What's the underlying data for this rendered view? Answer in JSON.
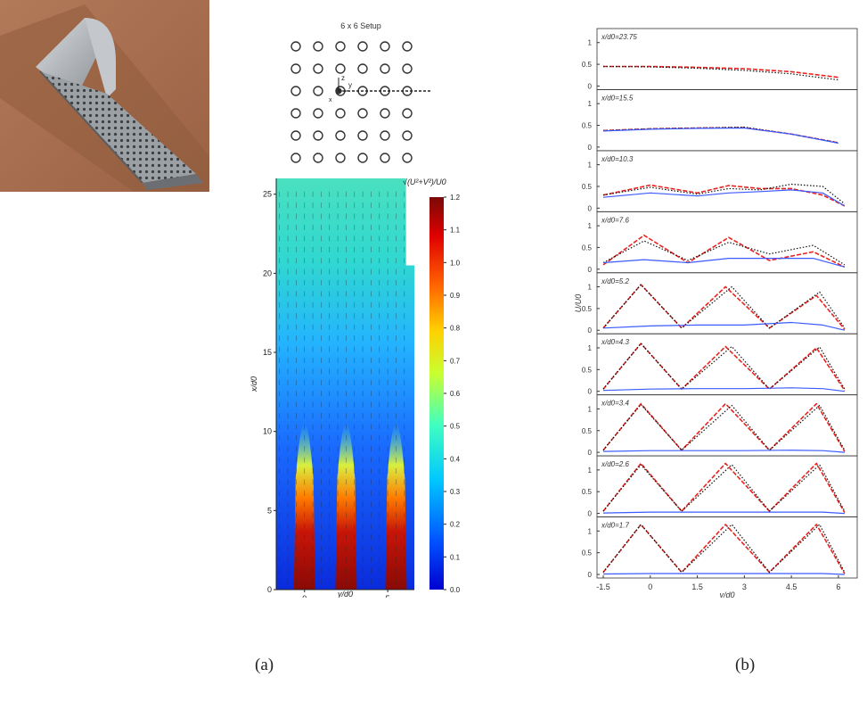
{
  "figure": {
    "caption_a": "(a)",
    "caption_b": "(b)"
  },
  "setup": {
    "title": "6 x 6 Setup",
    "axis_z": "z",
    "axis_y": "y",
    "axis_x": "x"
  },
  "colors": {
    "red_series": "#e8231f",
    "black_series": "#111111",
    "blue_series": "#3b5bff",
    "contour_low": "#0a2bdc",
    "contour_high": "#7a0a06"
  },
  "chart_data": [
    {
      "type": "heatmap",
      "title": "",
      "xlabel": "y/d0",
      "ylabel": "x/d0",
      "xticks": [
        "0",
        "5"
      ],
      "yticks": [
        "0",
        "5",
        "10",
        "15",
        "20",
        "25"
      ],
      "ylim": [
        0,
        26
      ],
      "xlim": [
        -1.7,
        6.6
      ],
      "jet_centers_y": [
        0,
        2.5,
        5.2
      ],
      "colorbar": {
        "label": "√(U²+V²)/U0",
        "min": 0.0,
        "max": 1.2,
        "ticks": [
          "0.0",
          "0.1",
          "0.2",
          "0.3",
          "0.4",
          "0.5",
          "0.6",
          "0.7",
          "0.8",
          "0.9",
          "1.0",
          "1.1",
          "1.2"
        ]
      }
    },
    {
      "type": "line",
      "xlabel": "y/d0",
      "ylabel": "U/U0",
      "xticks": [
        "-1.5",
        "0",
        "1.5",
        "3",
        "4.5",
        "6"
      ],
      "xlim": [
        -1.7,
        6.6
      ],
      "ylim": [
        0,
        1.2
      ],
      "yticks": [
        "0",
        "0.5",
        "1"
      ],
      "panels": [
        {
          "label": "x/d0=23.75",
          "series": [
            {
              "color": "red",
              "x": [
                -1.5,
                0,
                1.5,
                3,
                4.5,
                6
              ],
              "y": [
                0.45,
                0.45,
                0.43,
                0.4,
                0.33,
                0.2
              ]
            },
            {
              "color": "black",
              "x": [
                -1.5,
                0,
                1.5,
                3,
                4.5,
                6
              ],
              "y": [
                0.45,
                0.44,
                0.41,
                0.36,
                0.28,
                0.14
              ]
            }
          ]
        },
        {
          "label": "x/d0=15.5",
          "series": [
            {
              "color": "red",
              "x": [
                -1.5,
                0,
                1.5,
                3,
                4.5,
                6
              ],
              "y": [
                0.38,
                0.42,
                0.44,
                0.45,
                0.3,
                0.1
              ]
            },
            {
              "color": "black",
              "x": [
                -1.5,
                0,
                1.5,
                3,
                4.5,
                6
              ],
              "y": [
                0.38,
                0.42,
                0.44,
                0.46,
                0.3,
                0.1
              ]
            },
            {
              "color": "blue",
              "x": [
                -1.5,
                0,
                1.5,
                3,
                4.5,
                6
              ],
              "y": [
                0.37,
                0.41,
                0.43,
                0.44,
                0.3,
                0.09
              ]
            }
          ]
        },
        {
          "label": "x/d0=10.3",
          "series": [
            {
              "color": "red",
              "x": [
                -1.5,
                0,
                1.5,
                2.5,
                3.5,
                4.5,
                5.5,
                6.2
              ],
              "y": [
                0.3,
                0.53,
                0.35,
                0.52,
                0.45,
                0.45,
                0.3,
                0.05
              ]
            },
            {
              "color": "black",
              "x": [
                -1.5,
                0,
                1.5,
                2.5,
                3.5,
                4.5,
                5.5,
                6.2
              ],
              "y": [
                0.3,
                0.48,
                0.32,
                0.45,
                0.42,
                0.55,
                0.5,
                0.1
              ]
            },
            {
              "color": "blue",
              "x": [
                -1.5,
                0,
                1.5,
                2.5,
                3.5,
                4.5,
                5.5,
                6.2
              ],
              "y": [
                0.25,
                0.35,
                0.28,
                0.35,
                0.38,
                0.42,
                0.35,
                0.05
              ]
            }
          ]
        },
        {
          "label": "x/d0=7.6",
          "series": [
            {
              "color": "red",
              "x": [
                -1.5,
                -0.2,
                1.2,
                2.5,
                3.8,
                5.2,
                6.2
              ],
              "y": [
                0.1,
                0.78,
                0.15,
                0.73,
                0.2,
                0.4,
                0.05
              ]
            },
            {
              "color": "black",
              "x": [
                -1.5,
                -0.2,
                1.2,
                2.5,
                3.8,
                5.2,
                6.2
              ],
              "y": [
                0.15,
                0.65,
                0.2,
                0.62,
                0.35,
                0.55,
                0.1
              ]
            },
            {
              "color": "blue",
              "x": [
                -1.5,
                -0.2,
                1.2,
                2.5,
                3.8,
                5.2,
                6.2
              ],
              "y": [
                0.15,
                0.22,
                0.15,
                0.25,
                0.25,
                0.25,
                0.05
              ]
            }
          ]
        },
        {
          "label": "x/d0=5.2",
          "series": [
            {
              "color": "red",
              "x": [
                -1.5,
                -0.3,
                1.0,
                2.4,
                3.8,
                5.3,
                6.2
              ],
              "y": [
                0.05,
                1.05,
                0.05,
                1.0,
                0.05,
                0.8,
                0.02
              ]
            },
            {
              "color": "black",
              "x": [
                -1.5,
                -0.3,
                1.0,
                2.6,
                3.8,
                5.4,
                6.2
              ],
              "y": [
                0.05,
                1.05,
                0.05,
                1.0,
                0.05,
                0.88,
                0.05
              ]
            },
            {
              "color": "blue",
              "x": [
                -1.5,
                0,
                1.5,
                3,
                4.5,
                5.5,
                6.2
              ],
              "y": [
                0.05,
                0.1,
                0.12,
                0.12,
                0.18,
                0.12,
                0.0
              ]
            }
          ]
        },
        {
          "label": "x/d0=4.3",
          "series": [
            {
              "color": "red",
              "x": [
                -1.5,
                -0.3,
                1.0,
                2.4,
                3.8,
                5.3,
                6.2
              ],
              "y": [
                0.05,
                1.1,
                0.05,
                1.03,
                0.05,
                1.0,
                0.02
              ]
            },
            {
              "color": "black",
              "x": [
                -1.5,
                -0.3,
                1.0,
                2.6,
                3.8,
                5.4,
                6.2
              ],
              "y": [
                0.05,
                1.1,
                0.05,
                1.03,
                0.05,
                1.02,
                0.05
              ]
            },
            {
              "color": "blue",
              "x": [
                -1.5,
                0,
                1.5,
                3,
                4.5,
                5.5,
                6.2
              ],
              "y": [
                0.02,
                0.05,
                0.06,
                0.06,
                0.08,
                0.06,
                0.0
              ]
            }
          ]
        },
        {
          "label": "x/d0=3.4",
          "series": [
            {
              "color": "red",
              "x": [
                -1.5,
                -0.3,
                1.0,
                2.4,
                3.8,
                5.3,
                6.2
              ],
              "y": [
                0.05,
                1.12,
                0.05,
                1.12,
                0.05,
                1.12,
                0.02
              ]
            },
            {
              "color": "black",
              "x": [
                -1.5,
                -0.3,
                1.0,
                2.6,
                3.8,
                5.4,
                6.2
              ],
              "y": [
                0.05,
                1.1,
                0.05,
                1.08,
                0.05,
                1.08,
                0.05
              ]
            },
            {
              "color": "blue",
              "x": [
                -1.5,
                0,
                1.5,
                3,
                4.5,
                5.5,
                6.2
              ],
              "y": [
                0.02,
                0.04,
                0.04,
                0.04,
                0.05,
                0.04,
                0.0
              ]
            }
          ]
        },
        {
          "label": "x/d0=2.6",
          "series": [
            {
              "color": "red",
              "x": [
                -1.5,
                -0.3,
                1.0,
                2.4,
                3.8,
                5.3,
                6.2
              ],
              "y": [
                0.05,
                1.15,
                0.05,
                1.15,
                0.05,
                1.15,
                0.02
              ]
            },
            {
              "color": "black",
              "x": [
                -1.5,
                -0.3,
                1.0,
                2.6,
                3.8,
                5.4,
                6.2
              ],
              "y": [
                0.05,
                1.12,
                0.05,
                1.12,
                0.05,
                1.12,
                0.05
              ]
            },
            {
              "color": "blue",
              "x": [
                -1.5,
                0,
                1.5,
                3,
                4.5,
                5.5,
                6.2
              ],
              "y": [
                0.01,
                0.03,
                0.03,
                0.03,
                0.03,
                0.03,
                0.0
              ]
            }
          ]
        },
        {
          "label": "x/d0=1.7",
          "series": [
            {
              "color": "red",
              "x": [
                -1.5,
                -0.3,
                1.0,
                2.4,
                3.8,
                5.3,
                6.2
              ],
              "y": [
                0.05,
                1.15,
                0.05,
                1.15,
                0.05,
                1.15,
                0.02
              ]
            },
            {
              "color": "black",
              "x": [
                -1.5,
                -0.3,
                1.0,
                2.6,
                3.8,
                5.4,
                6.2
              ],
              "y": [
                0.05,
                1.15,
                0.05,
                1.15,
                0.05,
                1.15,
                0.05
              ]
            },
            {
              "color": "blue",
              "x": [
                -1.5,
                0,
                1.5,
                3,
                4.5,
                5.5,
                6.2
              ],
              "y": [
                0.01,
                0.02,
                0.02,
                0.02,
                0.02,
                0.02,
                0.0
              ]
            }
          ]
        }
      ]
    }
  ]
}
